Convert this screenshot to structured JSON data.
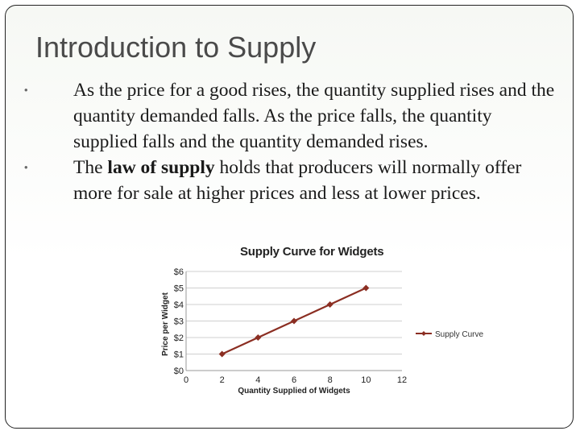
{
  "slide": {
    "title": "Introduction to Supply",
    "bullets": [
      {
        "marker": "•",
        "text": "As the price for a good rises, the quantity supplied rises and the quantity demanded falls. As the price falls, the quantity supplied falls and the quantity demanded rises."
      },
      {
        "marker": "•",
        "before": "The ",
        "bold": "law of supply",
        "after": " holds that producers will normally offer more for sale at higher prices and less at lower prices."
      }
    ]
  },
  "chart_data": {
    "type": "line",
    "title": "Supply Curve for Widgets",
    "xlabel": "Quantity Supplied of Widgets",
    "ylabel": "Price per Widget",
    "xlim": [
      0,
      12
    ],
    "ylim": [
      0,
      6
    ],
    "x_ticks": [
      "0",
      "2",
      "4",
      "6",
      "8",
      "10",
      "12"
    ],
    "y_ticks": [
      "$0",
      "$1",
      "$2",
      "$3",
      "$4",
      "$5",
      "$6"
    ],
    "grid": "horizontal",
    "legend_position": "right",
    "series": [
      {
        "name": "Supply Curve",
        "color": "#8b2e22",
        "points": [
          {
            "x": 2,
            "y": 1
          },
          {
            "x": 4,
            "y": 2
          },
          {
            "x": 6,
            "y": 3
          },
          {
            "x": 8,
            "y": 4
          },
          {
            "x": 10,
            "y": 5
          }
        ]
      }
    ]
  }
}
